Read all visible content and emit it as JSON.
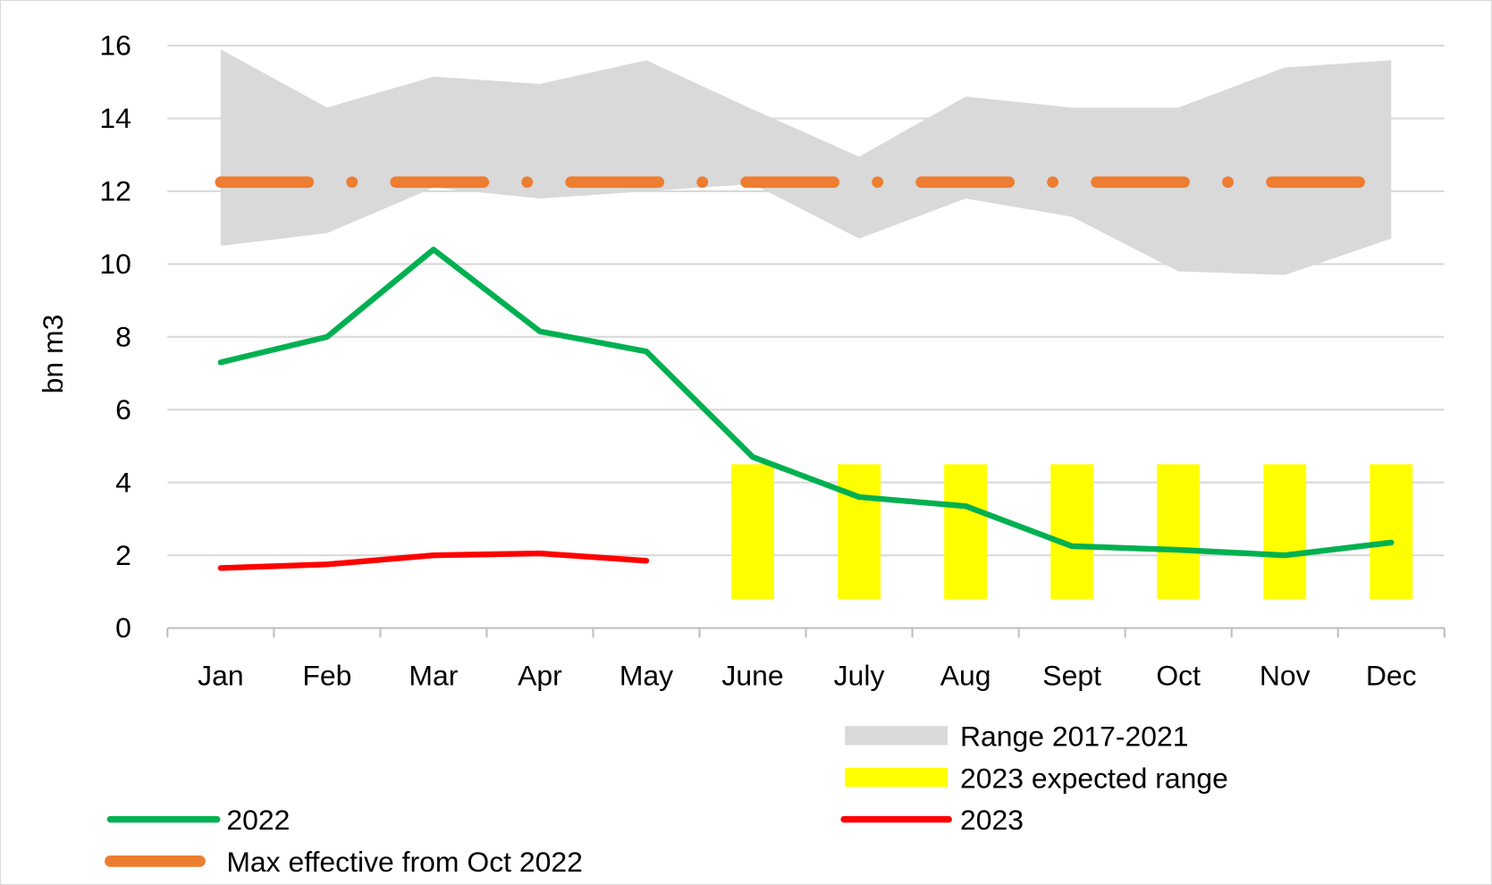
{
  "chart_data": {
    "type": "line",
    "title": "",
    "xlabel": "",
    "ylabel": "bn m3",
    "ylim": [
      0,
      16
    ],
    "yticks": [
      0,
      2,
      4,
      6,
      8,
      10,
      12,
      14,
      16
    ],
    "grid": true,
    "categories": [
      "Jan",
      "Feb",
      "Mar",
      "Apr",
      "May",
      "June",
      "July",
      "Aug",
      "Sept",
      "Oct",
      "Nov",
      "Dec"
    ],
    "range_band": {
      "name": "Range 2017-2021",
      "color": "#d9d9d9",
      "upper": [
        15.9,
        14.3,
        15.15,
        14.95,
        15.6,
        14.25,
        12.95,
        14.6,
        14.3,
        14.3,
        15.4,
        15.6
      ],
      "lower": [
        10.5,
        10.85,
        12.1,
        11.8,
        12.0,
        12.2,
        10.7,
        11.8,
        11.3,
        9.8,
        9.7,
        10.7
      ]
    },
    "expected_range": {
      "name": "2023 expected range",
      "color": "#ffff00",
      "categories": [
        "June",
        "July",
        "Aug",
        "Sept",
        "Oct",
        "Nov",
        "Dec"
      ],
      "low": 0.8,
      "high": 4.5
    },
    "series": [
      {
        "name": "2022",
        "color": "#00b050",
        "values": [
          7.3,
          8.0,
          10.4,
          8.15,
          7.6,
          4.7,
          3.6,
          3.35,
          2.25,
          2.15,
          2.0,
          2.35
        ]
      },
      {
        "name": "2023",
        "color": "#ff0000",
        "values": [
          1.65,
          1.75,
          2.0,
          2.05,
          1.85,
          null,
          null,
          null,
          null,
          null,
          null,
          null
        ]
      },
      {
        "name": "Max effective from Oct 2022",
        "color": "#ed7d31",
        "style": "dash-dot",
        "values": [
          12.25,
          12.25,
          12.25,
          12.25,
          12.25,
          12.25,
          12.25,
          12.25,
          12.25,
          12.25,
          12.25,
          12.25
        ]
      }
    ],
    "legend_placement": "bottom"
  }
}
